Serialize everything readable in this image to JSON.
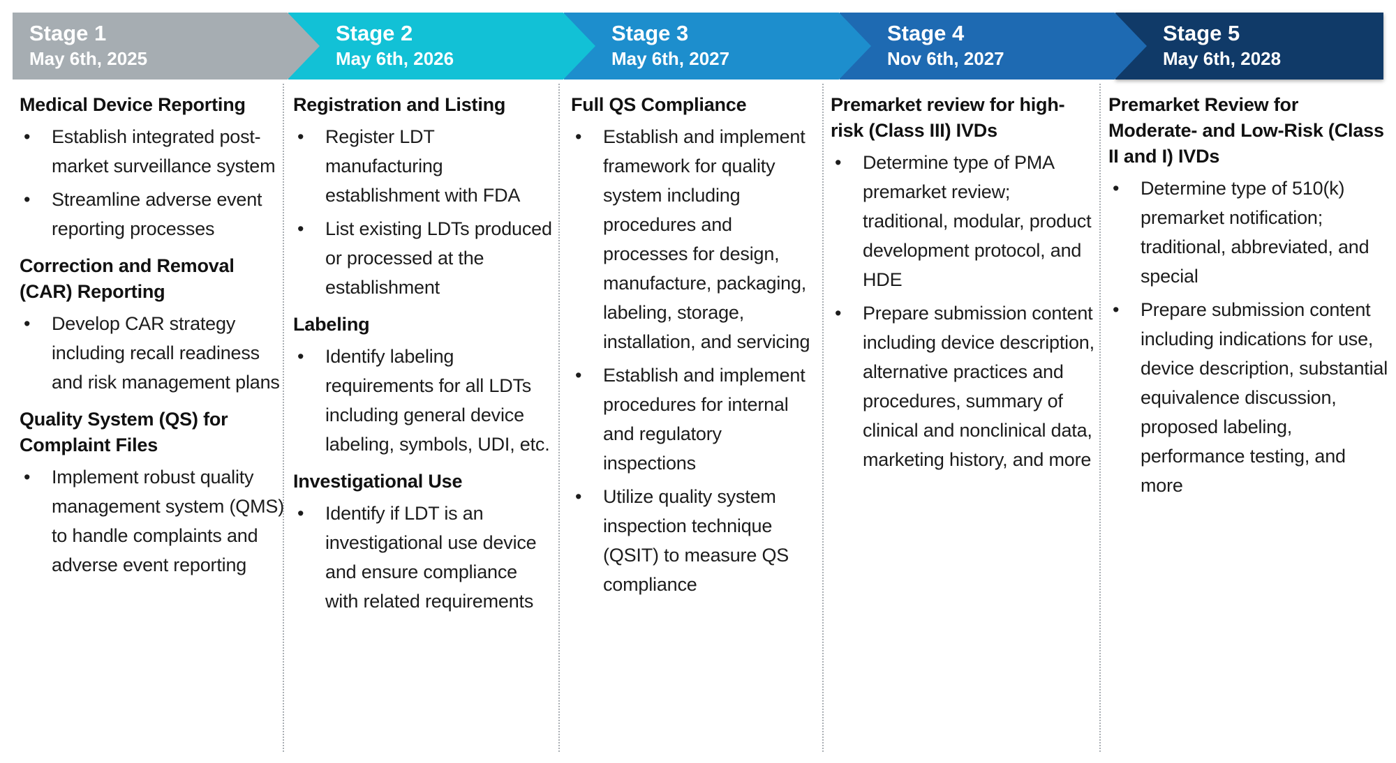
{
  "stages": [
    {
      "label": "Stage 1",
      "date": "May 6th, 2025",
      "color": "#a6adb2",
      "sections": [
        {
          "heading": "Medical Device Reporting",
          "bullets": [
            "Establish integrated post-market surveillance system",
            "Streamline adverse event reporting processes"
          ]
        },
        {
          "heading": "Correction and Removal (CAR) Reporting",
          "bullets": [
            "Develop CAR strategy including recall readiness and risk management plans"
          ]
        },
        {
          "heading": "Quality System (QS) for Complaint Files",
          "bullets": [
            "Implement robust quality management system (QMS) to handle complaints and adverse event reporting"
          ]
        }
      ]
    },
    {
      "label": "Stage 2",
      "date": "May 6th, 2026",
      "color": "#12c1d6",
      "sections": [
        {
          "heading": "Registration and Listing",
          "bullets": [
            "Register LDT manufacturing establishment with FDA",
            "List existing LDTs produced or processed at the establishment"
          ]
        },
        {
          "heading": "Labeling",
          "bullets": [
            "Identify labeling requirements for all LDTs including general device labeling, symbols, UDI, etc."
          ]
        },
        {
          "heading": "Investigational Use",
          "bullets": [
            "Identify if LDT is an investigational use device and ensure compliance with related requirements"
          ]
        }
      ]
    },
    {
      "label": "Stage 3",
      "date": "May 6th, 2027",
      "color": "#1d8ecd",
      "sections": [
        {
          "heading": "Full QS Compliance",
          "bullets": [
            "Establish and implement framework for quality system including procedures and processes for design, manufacture, packaging, labeling, storage, installation, and servicing",
            "Establish and implement procedures for internal and regulatory inspections",
            "Utilize quality system inspection technique (QSIT) to measure QS compliance"
          ]
        }
      ]
    },
    {
      "label": "Stage 4",
      "date": "Nov 6th, 2027",
      "color": "#1e6ab2",
      "sections": [
        {
          "heading": "Premarket review for high-risk (Class III) IVDs",
          "bullets": [
            "Determine type of PMA premarket review; traditional, modular, product development protocol, and HDE",
            "Prepare submission content including device description, alternative practices and procedures, summary of clinical and nonclinical data, marketing history, and more"
          ]
        }
      ]
    },
    {
      "label": "Stage 5",
      "date": "May 6th, 2028",
      "color": "#103a68",
      "sections": [
        {
          "heading": "Premarket Review for Moderate- and Low-Risk (Class II and I) IVDs",
          "bullets": [
            "Determine type of 510(k) premarket notification; traditional, abbreviated, and special",
            "Prepare submission content including indications for use, device description, substantial equivalence discussion, proposed labeling, performance testing, and more"
          ]
        }
      ]
    }
  ]
}
